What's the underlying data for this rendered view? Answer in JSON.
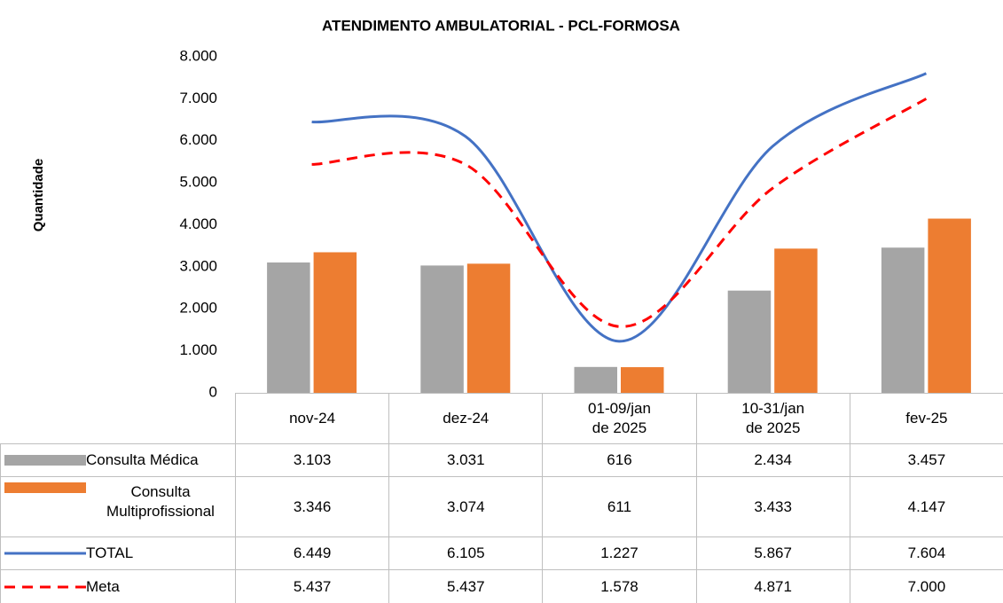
{
  "chart_data": {
    "type": "bar",
    "title": "ATENDIMENTO AMBULATORIAL - PCL-FORMOSA",
    "y_label": "Quantidade",
    "categories": [
      "nov-24",
      "dez-24",
      "01-09/jan\nde 2025",
      "10-31/jan\nde 2025",
      "fev-25"
    ],
    "ylim": [
      0,
      8000
    ],
    "yticks": [
      0,
      {
        "value": 1000,
        "label": "1.000"
      },
      {
        "value": 2000,
        "label": "2.000"
      },
      {
        "value": 3000,
        "label": "3.000"
      },
      {
        "value": 4000,
        "label": "4.000"
      },
      {
        "value": 5000,
        "label": "5.000"
      },
      {
        "value": 6000,
        "label": "6.000"
      },
      {
        "value": 7000,
        "label": "7.000"
      },
      {
        "value": 8000,
        "label": "8.000"
      }
    ],
    "grid": false,
    "series": [
      {
        "name": "Consulta Médica",
        "type": "bar",
        "color": "#a5a5a5",
        "values": [
          3103,
          3031,
          616,
          2434,
          3457
        ],
        "value_labels": [
          "3.103",
          "3.031",
          "616",
          "2.434",
          "3.457"
        ]
      },
      {
        "name": "Consulta\nMultiprofissional",
        "type": "bar",
        "color": "#ed7d31",
        "values": [
          3346,
          3074,
          611,
          3433,
          4147
        ],
        "value_labels": [
          "3.346",
          "3.074",
          "611",
          "3.433",
          "4.147"
        ]
      },
      {
        "name": "TOTAL",
        "type": "line",
        "color": "#4472c4",
        "values": [
          6449,
          6105,
          1227,
          5867,
          7604
        ],
        "value_labels": [
          "6.449",
          "6.105",
          "1.227",
          "5.867",
          "7.604"
        ]
      },
      {
        "name": "Meta",
        "type": "line",
        "dashed": true,
        "color": "#ff0000",
        "values": [
          5437,
          5437,
          1578,
          4871,
          7000
        ],
        "value_labels": [
          "5.437",
          "5.437",
          "1.578",
          "4.871",
          "7.000"
        ]
      }
    ]
  }
}
